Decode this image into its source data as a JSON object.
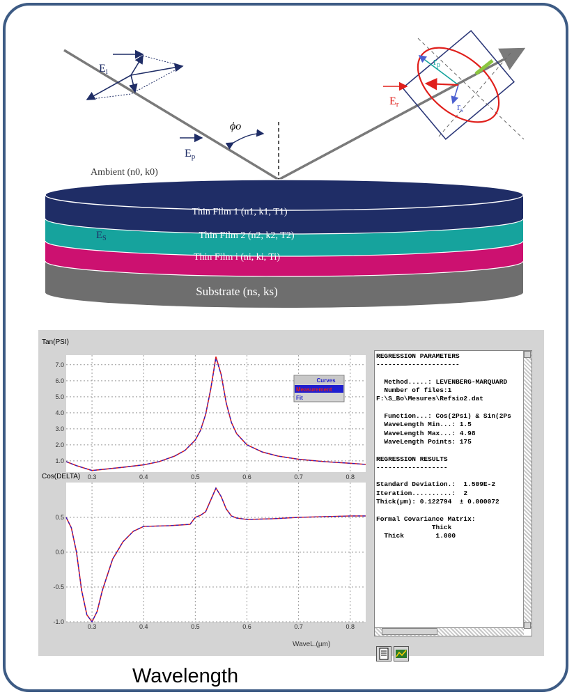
{
  "diagram": {
    "vectors": {
      "e_i": "Ei",
      "e_p": "Ep",
      "e_r": "Er",
      "e_s": "Es",
      "r_p": "rp",
      "r_s": "rs",
      "phi": "ϕo"
    },
    "ambient_label": "Ambient (n0, k0)",
    "layers": [
      {
        "label": "Thin Film  1 (n1, k1, T1)",
        "color": "#1f2d66"
      },
      {
        "label": "Thin Film  2 (n2, k2, T2)",
        "color": "#16a39d"
      },
      {
        "label": "Thin Film  i (ni, ki, Ti)",
        "color": "#cc1170"
      },
      {
        "label": "Substrate (ns, ks)",
        "color": "#6e6e6e"
      }
    ]
  },
  "graph_top": {
    "ylabel": "Tan(PSI)",
    "yticks": [
      "7.0",
      "6.0",
      "5.0",
      "4.0",
      "3.0",
      "2.0",
      "1.0"
    ],
    "xticks": [
      "0.3",
      "0.4",
      "0.5",
      "0.6",
      "0.7",
      "0.8"
    ],
    "legend": {
      "title": "Curves",
      "items": [
        "Measurement",
        "Fit"
      ]
    }
  },
  "graph_bottom": {
    "ylabel": "Cos(DELTA)",
    "yticks": [
      "0.5",
      "0.0",
      "-0.5",
      "-1.0"
    ],
    "xticks": [
      "0.3",
      "0.4",
      "0.5",
      "0.6",
      "0.7",
      "0.8"
    ],
    "xlabel": "WaveL.(µm)"
  },
  "chart_data": [
    {
      "type": "line",
      "title": "",
      "ylabel": "Tan(PSI)",
      "xlabel": "",
      "xlim": [
        0.25,
        0.83
      ],
      "ylim": [
        0.3,
        7.6
      ],
      "legend": "top-right",
      "grid": true,
      "series": [
        {
          "name": "Measurement",
          "color": "#e0201c",
          "x": [
            0.25,
            0.27,
            0.3,
            0.33,
            0.36,
            0.4,
            0.43,
            0.46,
            0.48,
            0.5,
            0.51,
            0.52,
            0.53,
            0.54,
            0.55,
            0.56,
            0.57,
            0.58,
            0.6,
            0.63,
            0.66,
            0.7,
            0.75,
            0.8,
            0.83
          ],
          "y": [
            0.95,
            0.7,
            0.4,
            0.5,
            0.6,
            0.75,
            0.95,
            1.3,
            1.65,
            2.3,
            2.9,
            3.9,
            5.5,
            7.5,
            6.4,
            4.6,
            3.4,
            2.7,
            2.0,
            1.55,
            1.3,
            1.1,
            0.95,
            0.85,
            0.78
          ]
        },
        {
          "name": "Fit",
          "color": "#1f1fd0",
          "x": [
            0.25,
            0.27,
            0.3,
            0.33,
            0.36,
            0.4,
            0.43,
            0.46,
            0.48,
            0.5,
            0.51,
            0.52,
            0.53,
            0.54,
            0.55,
            0.56,
            0.57,
            0.58,
            0.6,
            0.63,
            0.66,
            0.7,
            0.75,
            0.8,
            0.83
          ],
          "y": [
            0.95,
            0.7,
            0.4,
            0.5,
            0.6,
            0.75,
            0.95,
            1.3,
            1.65,
            2.3,
            2.9,
            3.9,
            5.5,
            7.4,
            6.4,
            4.6,
            3.4,
            2.7,
            2.0,
            1.55,
            1.3,
            1.1,
            0.95,
            0.85,
            0.78
          ]
        }
      ]
    },
    {
      "type": "line",
      "title": "",
      "ylabel": "Cos(DELTA)",
      "xlabel": "WaveL.(µm)",
      "xlim": [
        0.25,
        0.83
      ],
      "ylim": [
        -1.0,
        1.0
      ],
      "grid": true,
      "series": [
        {
          "name": "Measurement",
          "color": "#e0201c",
          "x": [
            0.25,
            0.26,
            0.27,
            0.28,
            0.29,
            0.3,
            0.31,
            0.32,
            0.34,
            0.36,
            0.38,
            0.4,
            0.45,
            0.49,
            0.5,
            0.51,
            0.52,
            0.53,
            0.54,
            0.55,
            0.56,
            0.57,
            0.58,
            0.6,
            0.65,
            0.7,
            0.75,
            0.8,
            0.83
          ],
          "y": [
            0.5,
            0.35,
            0.0,
            -0.55,
            -0.9,
            -1.0,
            -0.85,
            -0.55,
            -0.1,
            0.15,
            0.3,
            0.37,
            0.38,
            0.4,
            0.5,
            0.53,
            0.58,
            0.75,
            0.92,
            0.8,
            0.62,
            0.52,
            0.49,
            0.47,
            0.48,
            0.5,
            0.51,
            0.52,
            0.52
          ]
        },
        {
          "name": "Fit",
          "color": "#1f1fd0",
          "x": [
            0.25,
            0.26,
            0.27,
            0.28,
            0.29,
            0.3,
            0.31,
            0.32,
            0.34,
            0.36,
            0.38,
            0.4,
            0.45,
            0.49,
            0.5,
            0.51,
            0.52,
            0.53,
            0.54,
            0.55,
            0.56,
            0.57,
            0.58,
            0.6,
            0.65,
            0.7,
            0.75,
            0.8,
            0.83
          ],
          "y": [
            0.5,
            0.35,
            0.0,
            -0.55,
            -0.9,
            -1.0,
            -0.85,
            -0.55,
            -0.1,
            0.15,
            0.3,
            0.37,
            0.38,
            0.4,
            0.5,
            0.53,
            0.58,
            0.75,
            0.92,
            0.8,
            0.62,
            0.52,
            0.49,
            0.47,
            0.48,
            0.5,
            0.51,
            0.52,
            0.52
          ]
        }
      ]
    }
  ],
  "report": {
    "text": "REGRESSION PARAMETERS\n---------------------\n\n  Method.....: LEVENBERG-MARQUARD\n  Number of files:1\nF:\\S_Bo\\Mesures\\Refsio2.dat\n\n  Function...: Cos(2Psi) & Sin(2Ps\n  WaveLength Min...: 1.5\n  WaveLength Max...: 4.98\n  WaveLength Points: 175\n\nREGRESSION RESULTS\n------------------\n\nStandard Deviation.:  1.509E-2\nIteration..........:  2\nThick(µm): 0.122794  ± 0.000072\n\nFormal Covariance Matrix:\n              Thick\n  Thick        1.000"
  },
  "footer": {
    "label": "Wavelength"
  }
}
